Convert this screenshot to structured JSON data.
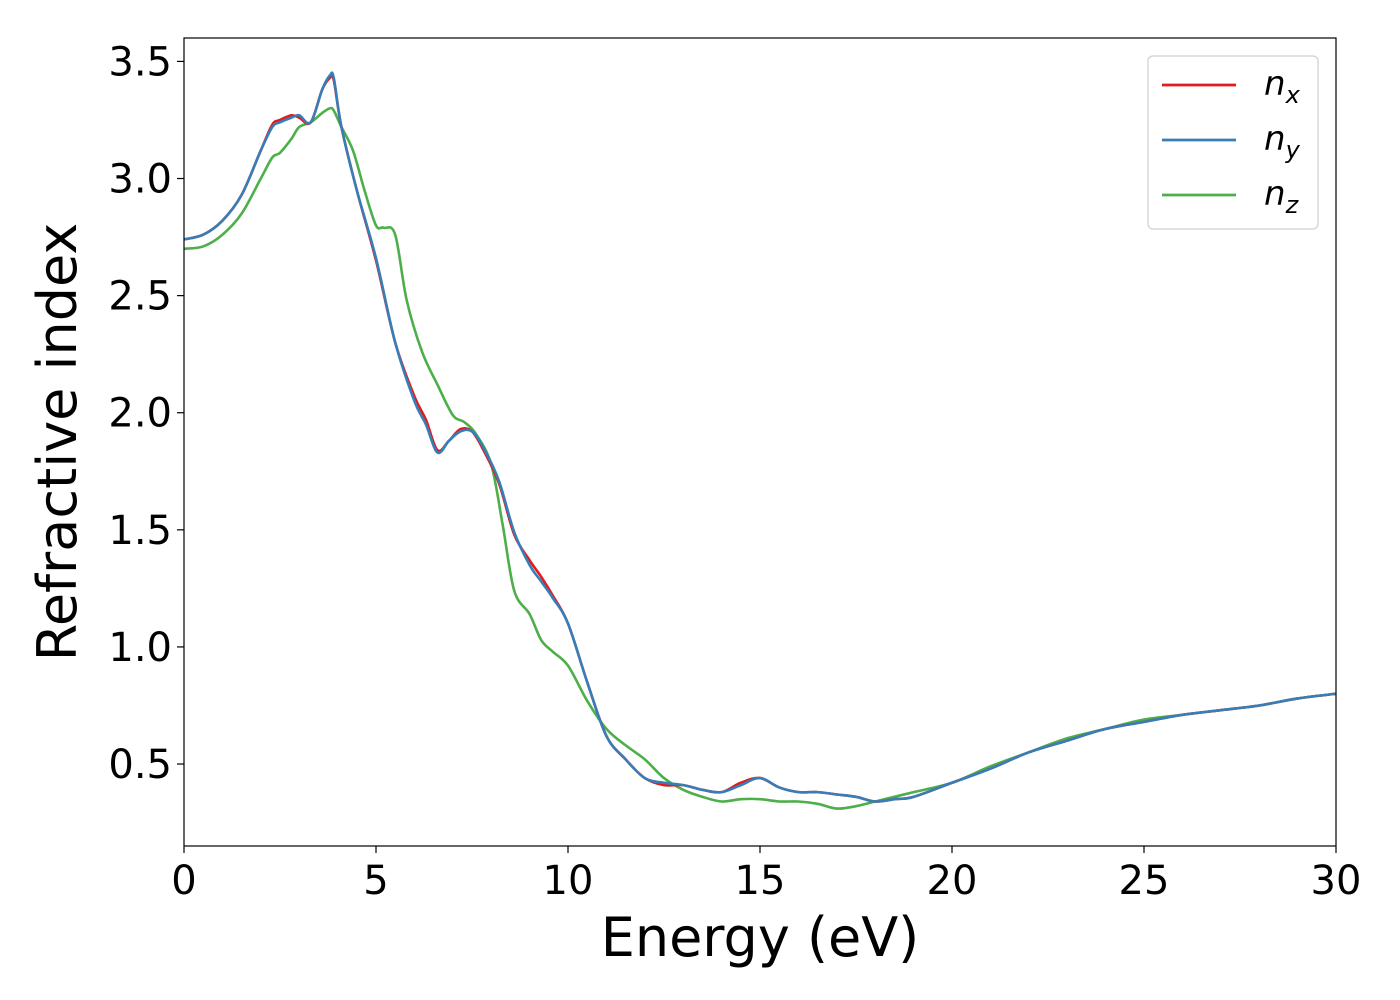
{
  "chart_data": {
    "type": "line",
    "title": "",
    "xlabel": "Energy (eV)",
    "ylabel": "Refractive index",
    "xlim": [
      0,
      30
    ],
    "ylim": [
      0.15,
      3.6
    ],
    "xticks": [
      0,
      5,
      10,
      15,
      20,
      25,
      30
    ],
    "xtick_labels": [
      "0",
      "5",
      "10",
      "15",
      "20",
      "25",
      "30"
    ],
    "yticks": [
      0.5,
      1.0,
      1.5,
      2.0,
      2.5,
      3.0,
      3.5
    ],
    "ytick_labels": [
      "0.5",
      "1.0",
      "1.5",
      "2.0",
      "2.5",
      "3.0",
      "3.5"
    ],
    "grid": false,
    "legend_position": "top-right",
    "series": [
      {
        "name": "n_x",
        "legend_base": "n",
        "legend_sub": "x",
        "color": "#e41a1c",
        "x": [
          0,
          0.5,
          1.0,
          1.5,
          2.0,
          2.3,
          2.5,
          2.8,
          3.0,
          3.3,
          3.6,
          3.8,
          3.9,
          4.1,
          4.5,
          5.0,
          5.5,
          6.0,
          6.3,
          6.6,
          6.9,
          7.2,
          7.5,
          7.8,
          8.2,
          8.6,
          9.0,
          9.3,
          9.6,
          10.0,
          10.5,
          11.0,
          11.5,
          12.0,
          12.5,
          13.0,
          13.5,
          14.0,
          14.5,
          15.0,
          15.5,
          16.0,
          16.5,
          17.0,
          17.5,
          18.0,
          18.5,
          19.0,
          20.0,
          21.0,
          22.0,
          23.0,
          24.0,
          25.0,
          26.0,
          27.0,
          28.0,
          29.0,
          30.0
        ],
        "y": [
          2.74,
          2.76,
          2.82,
          2.93,
          3.12,
          3.23,
          3.25,
          3.27,
          3.26,
          3.24,
          3.38,
          3.43,
          3.42,
          3.22,
          2.95,
          2.65,
          2.3,
          2.07,
          1.97,
          1.84,
          1.88,
          1.93,
          1.92,
          1.84,
          1.7,
          1.48,
          1.37,
          1.3,
          1.22,
          1.1,
          0.85,
          0.62,
          0.52,
          0.44,
          0.41,
          0.41,
          0.39,
          0.38,
          0.42,
          0.44,
          0.4,
          0.38,
          0.38,
          0.37,
          0.36,
          0.34,
          0.35,
          0.36,
          0.42,
          0.48,
          0.55,
          0.6,
          0.65,
          0.68,
          0.71,
          0.73,
          0.75,
          0.78,
          0.8
        ]
      },
      {
        "name": "n_y",
        "legend_base": "n",
        "legend_sub": "y",
        "color": "#377eb8",
        "x": [
          0,
          0.5,
          1.0,
          1.5,
          2.0,
          2.3,
          2.5,
          2.8,
          3.0,
          3.3,
          3.6,
          3.8,
          3.9,
          4.1,
          4.5,
          5.0,
          5.5,
          6.0,
          6.3,
          6.6,
          6.9,
          7.2,
          7.5,
          7.8,
          8.2,
          8.6,
          9.0,
          9.3,
          9.6,
          10.0,
          10.5,
          11.0,
          11.5,
          12.0,
          12.5,
          13.0,
          13.5,
          14.0,
          14.5,
          15.0,
          15.5,
          16.0,
          16.5,
          17.0,
          17.5,
          18.0,
          18.5,
          19.0,
          20.0,
          21.0,
          22.0,
          23.0,
          24.0,
          25.0,
          26.0,
          27.0,
          28.0,
          29.0,
          30.0
        ],
        "y": [
          2.74,
          2.76,
          2.82,
          2.93,
          3.12,
          3.22,
          3.24,
          3.26,
          3.27,
          3.24,
          3.38,
          3.44,
          3.43,
          3.22,
          2.95,
          2.66,
          2.3,
          2.05,
          1.95,
          1.83,
          1.88,
          1.92,
          1.92,
          1.85,
          1.71,
          1.49,
          1.35,
          1.28,
          1.21,
          1.1,
          0.85,
          0.62,
          0.52,
          0.44,
          0.42,
          0.41,
          0.39,
          0.38,
          0.41,
          0.44,
          0.4,
          0.38,
          0.38,
          0.37,
          0.36,
          0.34,
          0.35,
          0.36,
          0.42,
          0.48,
          0.55,
          0.6,
          0.65,
          0.68,
          0.71,
          0.73,
          0.75,
          0.78,
          0.8
        ]
      },
      {
        "name": "n_z",
        "legend_base": "n",
        "legend_sub": "z",
        "color": "#4daf4a",
        "x": [
          0,
          0.5,
          1.0,
          1.5,
          2.0,
          2.3,
          2.5,
          2.8,
          3.0,
          3.3,
          3.6,
          3.8,
          3.9,
          4.1,
          4.4,
          4.7,
          5.0,
          5.2,
          5.5,
          5.8,
          6.2,
          6.6,
          7.0,
          7.3,
          7.6,
          8.0,
          8.3,
          8.6,
          9.0,
          9.3,
          9.6,
          10.0,
          10.5,
          11.0,
          11.5,
          12.0,
          12.5,
          13.0,
          13.5,
          14.0,
          14.5,
          15.0,
          15.5,
          16.0,
          16.5,
          17.0,
          17.5,
          18.0,
          18.5,
          19.0,
          20.0,
          21.0,
          22.0,
          23.0,
          24.0,
          25.0,
          26.0,
          27.0,
          28.0,
          29.0,
          30.0
        ],
        "y": [
          2.7,
          2.71,
          2.76,
          2.85,
          3.0,
          3.09,
          3.11,
          3.17,
          3.22,
          3.24,
          3.28,
          3.3,
          3.29,
          3.22,
          3.12,
          2.95,
          2.8,
          2.79,
          2.76,
          2.48,
          2.26,
          2.12,
          1.99,
          1.96,
          1.91,
          1.78,
          1.52,
          1.24,
          1.14,
          1.03,
          0.98,
          0.92,
          0.77,
          0.65,
          0.58,
          0.52,
          0.44,
          0.39,
          0.36,
          0.34,
          0.35,
          0.35,
          0.34,
          0.34,
          0.33,
          0.31,
          0.32,
          0.34,
          0.36,
          0.38,
          0.42,
          0.49,
          0.55,
          0.61,
          0.65,
          0.69,
          0.71,
          0.73,
          0.75,
          0.78,
          0.8
        ]
      }
    ]
  }
}
